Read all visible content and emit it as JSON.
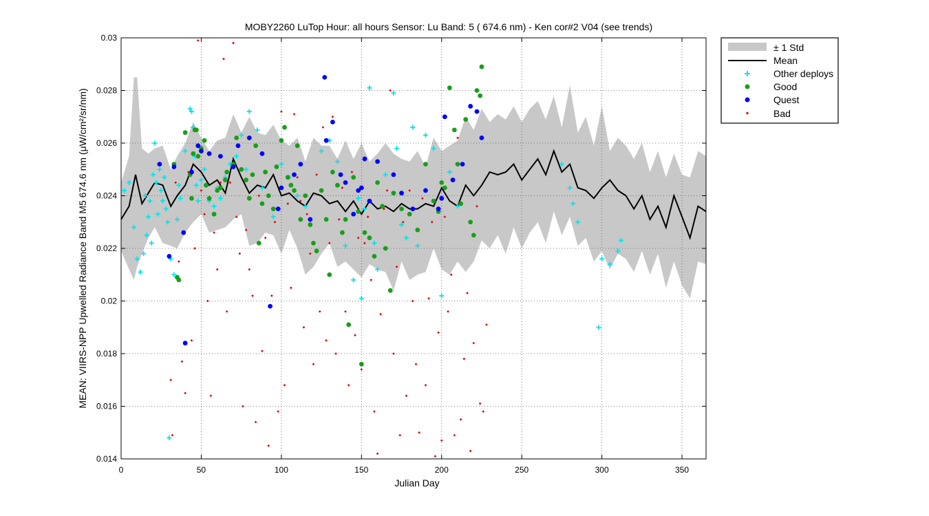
{
  "chart_data": {
    "type": "scatter",
    "title": "MOBY2260   LuTop  Hour: all hours  Sensor: Lu Band: 5 ( 674.6 nm)  - Ken cor#2 V04 (see trends)",
    "xlabel": "Julian Day",
    "ylabel": "MEAN: VIIRS-NPP Upwelled Radiance Band M5 674.6 nm (μW/cm²/sr/nm)",
    "xlim": [
      0,
      365
    ],
    "ylim": [
      0.014,
      0.03
    ],
    "grid": true,
    "legend_placement": "outside-top-right",
    "x_ticks": [
      0,
      50,
      100,
      150,
      200,
      250,
      300,
      350
    ],
    "x_tick_labels": [
      "0",
      "50",
      "100",
      "150",
      "200",
      "250",
      "300",
      "350"
    ],
    "y_ticks": [
      0.014,
      0.016,
      0.018,
      0.02,
      0.022,
      0.024,
      0.026,
      0.028,
      0.03
    ],
    "y_tick_labels": [
      "0.014",
      "0.016",
      "0.018",
      "0.02",
      "0.022",
      "0.024",
      "0.026",
      "0.028",
      "0.03"
    ],
    "legend": [
      "± 1 Std",
      "Mean",
      "Other deploys",
      "Good",
      "Quest",
      "Bad"
    ],
    "colors": {
      "std_band": "#c8c8c8",
      "mean": "#000000",
      "other": "#00e5ee",
      "good": "#1a9e1a",
      "quest": "#0000ff",
      "bad": "#e00000"
    },
    "mean_curve": {
      "x": [
        0,
        5,
        9,
        13,
        17,
        21,
        26,
        31,
        35,
        40,
        45,
        50,
        55,
        60,
        65,
        70,
        75,
        80,
        85,
        90,
        95,
        100,
        105,
        110,
        115,
        120,
        125,
        130,
        135,
        140,
        145,
        150,
        155,
        160,
        165,
        170,
        175,
        180,
        185,
        190,
        195,
        200,
        205,
        210,
        215,
        220,
        225,
        230,
        235,
        240,
        245,
        250,
        255,
        260,
        265,
        270,
        275,
        280,
        285,
        290,
        295,
        300,
        305,
        310,
        315,
        320,
        325,
        330,
        335,
        340,
        345,
        350,
        355,
        360,
        365
      ],
      "y": [
        0.0231,
        0.0236,
        0.0248,
        0.0237,
        0.0241,
        0.0245,
        0.0244,
        0.0236,
        0.024,
        0.0244,
        0.0252,
        0.0249,
        0.0244,
        0.0246,
        0.0241,
        0.0254,
        0.0247,
        0.0241,
        0.0244,
        0.0243,
        0.0248,
        0.024,
        0.0241,
        0.0238,
        0.0236,
        0.0241,
        0.024,
        0.0237,
        0.0238,
        0.0234,
        0.0238,
        0.0233,
        0.0238,
        0.0235,
        0.0236,
        0.0234,
        0.0237,
        0.0235,
        0.0235,
        0.0237,
        0.0236,
        0.0243,
        0.0238,
        0.0236,
        0.0244,
        0.024,
        0.0244,
        0.0249,
        0.0248,
        0.0249,
        0.0252,
        0.0246,
        0.025,
        0.0254,
        0.0248,
        0.0257,
        0.0249,
        0.0252,
        0.0243,
        0.0242,
        0.0239,
        0.0243,
        0.0246,
        0.0242,
        0.024,
        0.0235,
        0.024,
        0.0231,
        0.0236,
        0.0228,
        0.024,
        0.0232,
        0.0224,
        0.0236,
        0.0234
      ]
    },
    "std_band": {
      "x": [
        0,
        5,
        8,
        10,
        13,
        17,
        21,
        26,
        31,
        35,
        40,
        45,
        50,
        55,
        60,
        65,
        70,
        75,
        80,
        85,
        90,
        95,
        100,
        105,
        110,
        115,
        120,
        125,
        130,
        135,
        140,
        145,
        150,
        155,
        160,
        165,
        170,
        175,
        180,
        185,
        190,
        195,
        200,
        205,
        210,
        215,
        220,
        225,
        230,
        235,
        240,
        245,
        250,
        255,
        260,
        265,
        270,
        275,
        280,
        285,
        290,
        295,
        300,
        305,
        310,
        315,
        320,
        325,
        330,
        335,
        340,
        345,
        350,
        355,
        360,
        365
      ],
      "upper": [
        0.0245,
        0.0255,
        0.0285,
        0.0285,
        0.0258,
        0.0256,
        0.0258,
        0.0259,
        0.025,
        0.0255,
        0.026,
        0.0268,
        0.0262,
        0.0257,
        0.0261,
        0.0262,
        0.0271,
        0.0264,
        0.027,
        0.0264,
        0.0263,
        0.0267,
        0.0261,
        0.0259,
        0.0262,
        0.0253,
        0.0262,
        0.0259,
        0.0259,
        0.0254,
        0.0261,
        0.0254,
        0.026,
        0.0253,
        0.0256,
        0.026,
        0.0256,
        0.0254,
        0.0253,
        0.0257,
        0.0251,
        0.0262,
        0.0257,
        0.0259,
        0.0261,
        0.027,
        0.0265,
        0.0273,
        0.0268,
        0.0271,
        0.0269,
        0.0274,
        0.0268,
        0.0273,
        0.0276,
        0.0269,
        0.0278,
        0.0266,
        0.0282,
        0.0264,
        0.027,
        0.0259,
        0.0274,
        0.0257,
        0.0262,
        0.0259,
        0.0254,
        0.026,
        0.0249,
        0.0257,
        0.0247,
        0.0256,
        0.0248,
        0.0247,
        0.0257,
        0.0255
      ],
      "lower": [
        0.0219,
        0.0212,
        0.0208,
        0.0213,
        0.0218,
        0.0224,
        0.0228,
        0.0222,
        0.0221,
        0.022,
        0.0226,
        0.023,
        0.0233,
        0.0226,
        0.0227,
        0.0228,
        0.0231,
        0.0233,
        0.0221,
        0.0222,
        0.0226,
        0.0225,
        0.0218,
        0.0227,
        0.022,
        0.021,
        0.0213,
        0.0218,
        0.0222,
        0.0213,
        0.0215,
        0.0212,
        0.0209,
        0.0214,
        0.0212,
        0.0211,
        0.0204,
        0.0215,
        0.0208,
        0.021,
        0.0211,
        0.022,
        0.0212,
        0.021,
        0.0215,
        0.0211,
        0.0215,
        0.0223,
        0.022,
        0.0225,
        0.0218,
        0.0228,
        0.022,
        0.0226,
        0.023,
        0.0222,
        0.0234,
        0.0225,
        0.0232,
        0.0221,
        0.0224,
        0.0215,
        0.0219,
        0.0212,
        0.0218,
        0.0216,
        0.0211,
        0.0219,
        0.021,
        0.0218,
        0.0205,
        0.0215,
        0.0206,
        0.0201,
        0.0215,
        0.0214
      ]
    },
    "series": [
      {
        "name": "Other deploys",
        "marker": "+",
        "x": [
          2,
          5,
          8,
          10,
          12,
          14,
          15,
          16,
          17,
          18,
          19,
          20,
          21,
          22,
          23,
          24,
          25,
          26,
          27,
          28,
          29,
          30,
          31,
          33,
          35,
          36,
          37,
          40,
          43,
          44,
          45,
          46,
          47,
          48,
          50,
          52,
          55,
          58,
          60,
          62,
          65,
          68,
          72,
          75,
          78,
          80,
          85,
          88,
          95,
          100,
          105,
          110,
          115,
          125,
          130,
          135,
          140,
          145,
          148,
          150,
          152,
          155,
          158,
          160,
          165,
          170,
          172,
          175,
          178,
          182,
          185,
          190,
          195,
          200,
          205,
          210,
          275,
          280,
          282,
          285,
          298,
          300,
          305,
          310,
          312
        ],
        "y": [
          0.0242,
          0.0245,
          0.0228,
          0.0216,
          0.0211,
          0.0218,
          0.024,
          0.0225,
          0.0232,
          0.0238,
          0.0222,
          0.0248,
          0.026,
          0.0245,
          0.0233,
          0.025,
          0.0242,
          0.0238,
          0.0247,
          0.0235,
          0.023,
          0.0148,
          0.0216,
          0.021,
          0.0231,
          0.0244,
          0.0239,
          0.0257,
          0.0273,
          0.0272,
          0.0266,
          0.0255,
          0.0244,
          0.0238,
          0.0246,
          0.025,
          0.0238,
          0.0236,
          0.0243,
          0.0239,
          0.0247,
          0.0252,
          0.0255,
          0.0263,
          0.025,
          0.0272,
          0.0265,
          0.0243,
          0.0232,
          0.0252,
          0.0247,
          0.024,
          0.0236,
          0.0257,
          0.0261,
          0.0253,
          0.0221,
          0.0208,
          0.0239,
          0.0201,
          0.0235,
          0.0281,
          0.0222,
          0.0212,
          0.0248,
          0.0279,
          0.0258,
          0.0229,
          0.0224,
          0.0266,
          0.0221,
          0.0263,
          0.0258,
          0.0202,
          0.0249,
          0.0236,
          0.0252,
          0.0243,
          0.0237,
          0.023,
          0.019,
          0.0216,
          0.0214,
          0.0219,
          0.0223
        ]
      },
      {
        "name": "Good",
        "marker": "o",
        "x": [
          33,
          35,
          36,
          40,
          43,
          44,
          45,
          46,
          47,
          48,
          50,
          52,
          53,
          55,
          58,
          60,
          62,
          65,
          66,
          70,
          72,
          75,
          78,
          80,
          82,
          84,
          86,
          88,
          90,
          92,
          95,
          97,
          100,
          102,
          104,
          106,
          108,
          110,
          112,
          115,
          118,
          120,
          122,
          125,
          128,
          130,
          132,
          135,
          138,
          140,
          142,
          145,
          148,
          150,
          152,
          155,
          158,
          160,
          163,
          165,
          168,
          170,
          175,
          180,
          185,
          190,
          195,
          198,
          200,
          202,
          205,
          208,
          210,
          212,
          215,
          218,
          220,
          222,
          224,
          225
        ],
        "y": [
          0.0252,
          0.0209,
          0.0208,
          0.0264,
          0.0248,
          0.0239,
          0.0256,
          0.0265,
          0.0265,
          0.0255,
          0.0258,
          0.0261,
          0.0244,
          0.0239,
          0.0233,
          0.0242,
          0.0243,
          0.0246,
          0.0249,
          0.0252,
          0.0262,
          0.025,
          0.0246,
          0.0239,
          0.0248,
          0.0259,
          0.0222,
          0.0237,
          0.0249,
          0.024,
          0.0235,
          0.0251,
          0.0261,
          0.0266,
          0.0247,
          0.0244,
          0.0242,
          0.0259,
          0.0231,
          0.024,
          0.0229,
          0.0222,
          0.0219,
          0.0242,
          0.0231,
          0.021,
          0.0249,
          0.0244,
          0.0226,
          0.0231,
          0.0191,
          0.0247,
          0.0234,
          0.0176,
          0.0226,
          0.0224,
          0.0217,
          0.0245,
          0.0236,
          0.022,
          0.0204,
          0.0241,
          0.0235,
          0.0233,
          0.0227,
          0.0252,
          0.0238,
          0.0234,
          0.0245,
          0.0243,
          0.0281,
          0.0265,
          0.0252,
          0.0237,
          0.0269,
          0.023,
          0.0225,
          0.028,
          0.0278,
          0.0289
        ]
      },
      {
        "name": "Quest",
        "marker": "o",
        "x": [
          24,
          30,
          33,
          39,
          40,
          44,
          48,
          50,
          55,
          62,
          70,
          73,
          80,
          88,
          93,
          98,
          100,
          108,
          112,
          118,
          127,
          128,
          132,
          137,
          140,
          145,
          148,
          150,
          152,
          155,
          160,
          170,
          175,
          182,
          190,
          198,
          200,
          202,
          207,
          213,
          218,
          222,
          225
        ],
        "y": [
          0.0252,
          0.0217,
          0.0251,
          0.0226,
          0.0184,
          0.0249,
          0.0259,
          0.0257,
          0.0256,
          0.0255,
          0.0251,
          0.0259,
          0.0262,
          0.0256,
          0.0198,
          0.0235,
          0.0243,
          0.0248,
          0.0252,
          0.0231,
          0.0285,
          0.0261,
          0.0268,
          0.0248,
          0.0245,
          0.0233,
          0.0242,
          0.0243,
          0.0254,
          0.0238,
          0.0253,
          0.0248,
          0.0241,
          0.0235,
          0.0242,
          0.0235,
          0.0239,
          0.027,
          0.0246,
          0.0252,
          0.0274,
          0.0272,
          0.0262
        ]
      },
      {
        "name": "Bad",
        "marker": ".",
        "x": [
          31,
          32,
          34,
          36,
          38,
          40,
          42,
          44,
          46,
          48,
          50,
          52,
          54,
          56,
          58,
          60,
          62,
          64,
          66,
          68,
          70,
          72,
          74,
          76,
          78,
          80,
          82,
          84,
          86,
          88,
          90,
          92,
          94,
          96,
          98,
          100,
          102,
          104,
          106,
          108,
          110,
          112,
          114,
          116,
          118,
          120,
          122,
          124,
          126,
          128,
          130,
          132,
          134,
          136,
          138,
          140,
          142,
          144,
          146,
          148,
          150,
          152,
          154,
          156,
          158,
          160,
          162,
          164,
          166,
          168,
          170,
          172,
          174,
          176,
          178,
          180,
          182,
          184,
          186,
          188,
          190,
          192,
          194,
          196,
          198,
          200,
          202,
          204,
          206,
          208,
          210,
          212,
          214,
          216,
          218,
          220,
          222,
          224,
          226,
          228
        ],
        "y": [
          0.017,
          0.0149,
          0.0245,
          0.0215,
          0.0177,
          0.0165,
          0.0249,
          0.0185,
          0.022,
          0.0299,
          0.0242,
          0.0233,
          0.02,
          0.0164,
          0.0226,
          0.0212,
          0.0245,
          0.0292,
          0.0196,
          0.0245,
          0.0298,
          0.0232,
          0.0218,
          0.016,
          0.0227,
          0.0212,
          0.0202,
          0.0154,
          0.024,
          0.0181,
          0.0224,
          0.0145,
          0.0202,
          0.023,
          0.0158,
          0.0272,
          0.0168,
          0.0237,
          0.0205,
          0.0271,
          0.0247,
          0.0238,
          0.019,
          0.0233,
          0.0218,
          0.0176,
          0.0248,
          0.0196,
          0.0266,
          0.0185,
          0.0222,
          0.027,
          0.018,
          0.0231,
          0.0243,
          0.0196,
          0.0168,
          0.0249,
          0.0187,
          0.0224,
          0.0174,
          0.0222,
          0.0232,
          0.0208,
          0.0158,
          0.0142,
          0.0195,
          0.0235,
          0.0242,
          0.028,
          0.018,
          0.0213,
          0.0149,
          0.023,
          0.0164,
          0.0242,
          0.02,
          0.0176,
          0.015,
          0.0239,
          0.0168,
          0.0201,
          0.023,
          0.0141,
          0.0188,
          0.0147,
          0.0232,
          0.0196,
          0.021,
          0.0149,
          0.0262,
          0.0155,
          0.0178,
          0.0203,
          0.0143,
          0.0184,
          0.0236,
          0.0161,
          0.0158,
          0.0191
        ]
      }
    ]
  }
}
